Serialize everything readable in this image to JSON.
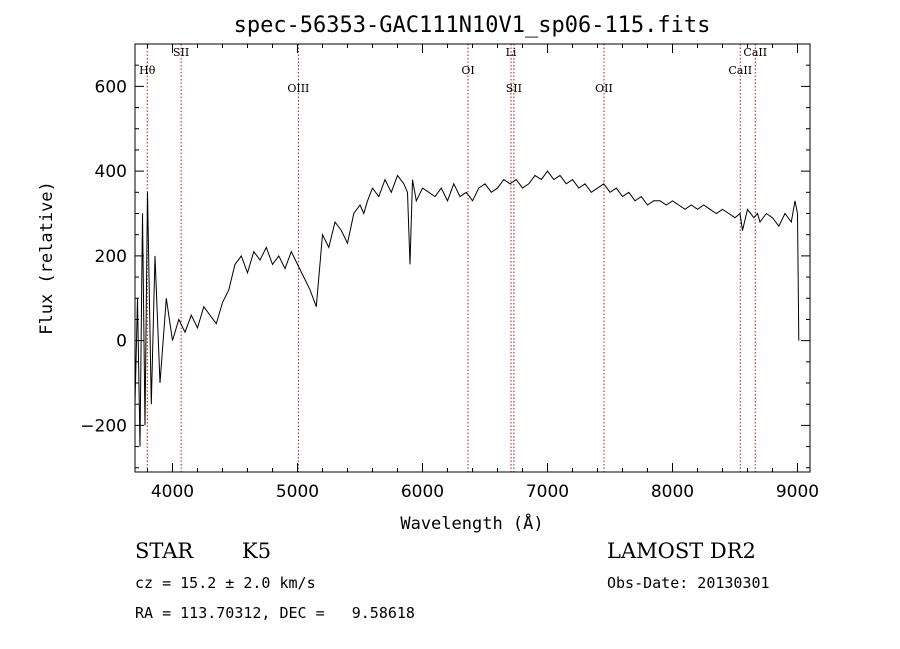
{
  "chart_data": {
    "type": "line",
    "title": "spec-56353-GAC111N10V1_sp06-115.fits",
    "xlabel": "Wavelength (Å)",
    "ylabel": "Flux (relative)",
    "xlim": [
      3700,
      9100
    ],
    "ylim": [
      -310,
      700
    ],
    "x_ticks": [
      4000,
      5000,
      6000,
      7000,
      8000,
      9000
    ],
    "y_ticks": [
      -200,
      0,
      200,
      400,
      600
    ],
    "grid": false,
    "series": [
      {
        "color": "#000000",
        "x": [
          3700,
          3720,
          3740,
          3760,
          3780,
          3800,
          3830,
          3860,
          3900,
          3950,
          4000,
          4050,
          4100,
          4150,
          4200,
          4250,
          4300,
          4350,
          4400,
          4450,
          4500,
          4550,
          4600,
          4650,
          4700,
          4750,
          4800,
          4850,
          4900,
          4950,
          5000,
          5050,
          5100,
          5150,
          5200,
          5250,
          5300,
          5350,
          5400,
          5450,
          5500,
          5530,
          5560,
          5600,
          5650,
          5700,
          5750,
          5800,
          5850,
          5880,
          5900,
          5920,
          5950,
          6000,
          6050,
          6100,
          6150,
          6200,
          6250,
          6300,
          6350,
          6400,
          6450,
          6500,
          6550,
          6600,
          6650,
          6700,
          6750,
          6800,
          6850,
          6900,
          6950,
          7000,
          7050,
          7100,
          7150,
          7200,
          7250,
          7300,
          7350,
          7400,
          7450,
          7500,
          7550,
          7600,
          7650,
          7700,
          7750,
          7800,
          7850,
          7900,
          7950,
          8000,
          8050,
          8100,
          8150,
          8200,
          8250,
          8300,
          8350,
          8400,
          8450,
          8500,
          8540,
          8560,
          8600,
          8650,
          8680,
          8700,
          8750,
          8800,
          8850,
          8900,
          8950,
          8980,
          9000,
          9010
        ],
        "y": [
          -150,
          100,
          -250,
          300,
          -200,
          350,
          -150,
          200,
          -100,
          100,
          0,
          50,
          20,
          60,
          30,
          80,
          60,
          40,
          90,
          120,
          180,
          200,
          160,
          210,
          190,
          220,
          180,
          200,
          170,
          210,
          180,
          150,
          120,
          80,
          250,
          220,
          280,
          260,
          230,
          300,
          320,
          300,
          330,
          360,
          340,
          380,
          350,
          390,
          370,
          350,
          180,
          380,
          330,
          360,
          350,
          340,
          360,
          330,
          370,
          340,
          350,
          330,
          360,
          370,
          350,
          360,
          380,
          370,
          380,
          360,
          370,
          390,
          380,
          400,
          380,
          390,
          370,
          380,
          360,
          370,
          350,
          360,
          370,
          350,
          360,
          340,
          350,
          330,
          340,
          320,
          330,
          330,
          320,
          330,
          320,
          310,
          320,
          310,
          320,
          310,
          300,
          310,
          300,
          290,
          300,
          260,
          310,
          290,
          300,
          280,
          300,
          290,
          270,
          300,
          280,
          330,
          300,
          0
        ]
      }
    ],
    "spectral_lines": [
      {
        "label": "Hθ",
        "x": 3798
      },
      {
        "label": "SII",
        "x": 4069
      },
      {
        "label": "OIII",
        "x": 5007
      },
      {
        "label": "OI",
        "x": 6364
      },
      {
        "label": "Li",
        "x": 6708
      },
      {
        "label": "SII",
        "x": 6731
      },
      {
        "label": "OII",
        "x": 7452
      },
      {
        "label": "CaII",
        "x": 8542
      },
      {
        "label": "CaII",
        "x": 8662
      }
    ]
  },
  "info": {
    "class": "STAR",
    "subclass": "K5",
    "survey": "LAMOST DR2",
    "cz": "cz = 15.2 ± 2.0 km/s",
    "obs_date": "Obs-Date: 20130301",
    "radec": "RA = 113.70312, DEC =   9.58618"
  }
}
